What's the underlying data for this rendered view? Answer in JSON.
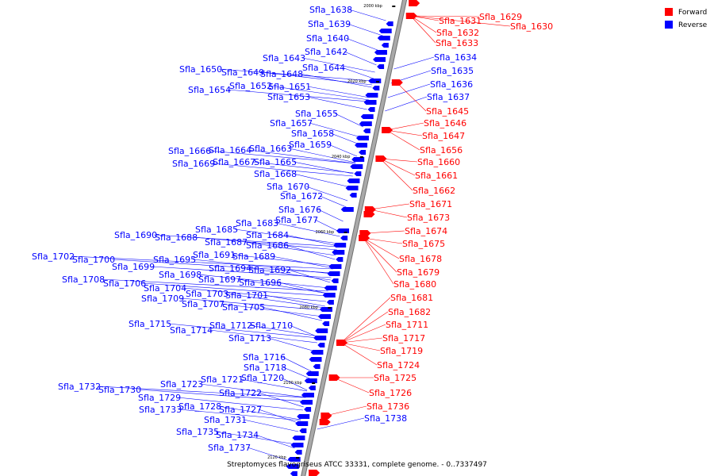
{
  "caption": "Streptomyces flavogriseus ATCC 33331, complete genome. - 0..7337497",
  "legend": [
    {
      "label": "Forward",
      "color": "#ff0000"
    },
    {
      "label": "Reverse",
      "color": "#0000ff"
    }
  ],
  "ticks": [
    "2000 kbp",
    "2020 kbp",
    "2040 kbp",
    "2060 kbp",
    "2080 kbp",
    "2100 kbp",
    "2120 kbp"
  ],
  "colors": {
    "forward": "#ff0000",
    "reverse": "#0000ff",
    "backbone": "#a9a9a9"
  },
  "reverse_genes": [
    "Sfla_1638",
    "Sfla_1639",
    "Sfla_1640",
    "Sfla_1642",
    "Sfla_1643",
    "Sfla_1644",
    "Sfla_1650",
    "Sfla_1649",
    "Sfla_1648",
    "Sfla_1652",
    "Sfla_1651",
    "Sfla_1654",
    "Sfla_1653",
    "Sfla_1655",
    "Sfla_1657",
    "Sfla_1658",
    "Sfla_1659",
    "Sfla_1666",
    "Sfla_1664",
    "Sfla_1663",
    "Sfla_1667",
    "Sfla_1665",
    "Sfla_1669",
    "Sfla_1668",
    "Sfla_1670",
    "Sfla_1672",
    "Sfla_1676",
    "Sfla_1677",
    "Sfla_1683",
    "Sfla_1685",
    "Sfla_1684",
    "Sfla_1690",
    "Sfla_1688",
    "Sfla_1687",
    "Sfla_1686",
    "Sfla_1691",
    "Sfla_1689",
    "Sfla_1702",
    "Sfla_1700",
    "Sfla_1695",
    "Sfla_1699",
    "Sfla_1694",
    "Sfla_1692",
    "Sfla_1698",
    "Sfla_1697",
    "Sfla_1696",
    "Sfla_1708",
    "Sfla_1706",
    "Sfla_1704",
    "Sfla_1703",
    "Sfla_1701",
    "Sfla_1709",
    "Sfla_1707",
    "Sfla_1705",
    "Sfla_1715",
    "Sfla_1712",
    "Sfla_1710",
    "Sfla_1714",
    "Sfla_1713",
    "Sfla_1716",
    "Sfla_1718",
    "Sfla_1721",
    "Sfla_1720",
    "Sfla_1723",
    "Sfla_1722",
    "Sfla_1732",
    "Sfla_1730",
    "Sfla_1729",
    "Sfla_1728",
    "Sfla_1727",
    "Sfla_1733",
    "Sfla_1731",
    "Sfla_1735",
    "Sfla_1734",
    "Sfla_1737",
    "Sfla_1738",
    "Sfla_1634",
    "Sfla_1635",
    "Sfla_1636",
    "Sfla_1637"
  ],
  "forward_genes": [
    "Sfla_1629",
    "Sfla_1631",
    "Sfla_1630",
    "Sfla_1632",
    "Sfla_1633",
    "Sfla_1645",
    "Sfla_1646",
    "Sfla_1647",
    "Sfla_1656",
    "Sfla_1660",
    "Sfla_1661",
    "Sfla_1662",
    "Sfla_1671",
    "Sfla_1673",
    "Sfla_1674",
    "Sfla_1675",
    "Sfla_1678",
    "Sfla_1679",
    "Sfla_1680",
    "Sfla_1681",
    "Sfla_1682",
    "Sfla_1711",
    "Sfla_1717",
    "Sfla_1719",
    "Sfla_1724",
    "Sfla_1725",
    "Sfla_1726",
    "Sfla_1736"
  ]
}
